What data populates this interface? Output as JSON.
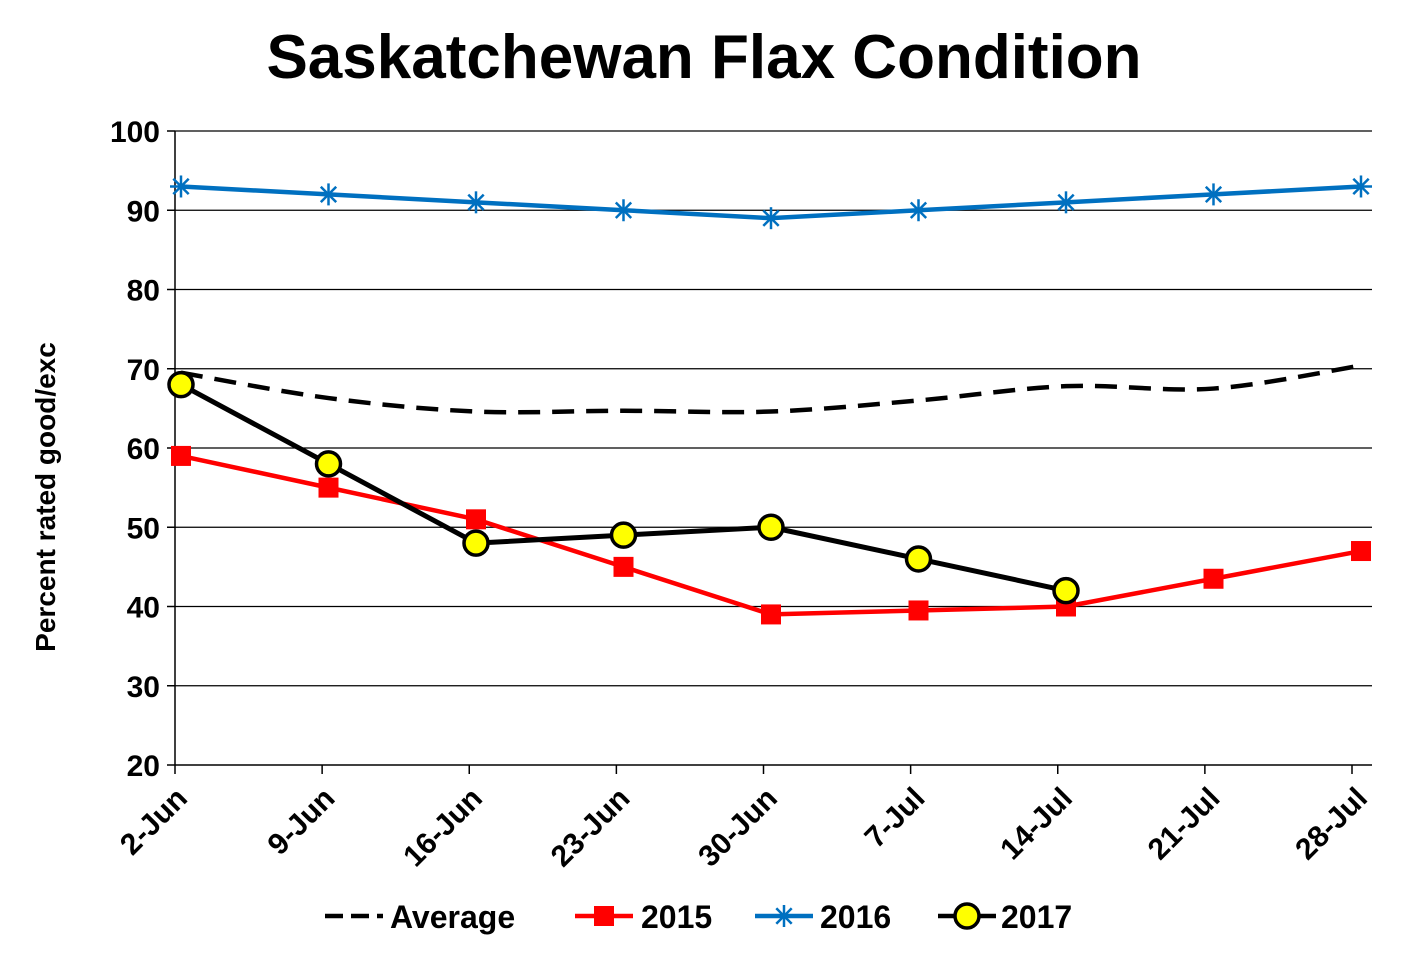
{
  "chart_data": {
    "type": "line",
    "title": "Saskatchewan Flax Condition",
    "xlabel": "",
    "ylabel": "Percent rated good/exc",
    "categories": [
      "2-Jun",
      "9-Jun",
      "16-Jun",
      "23-Jun",
      "30-Jun",
      "7-Jul",
      "14-Jul",
      "21-Jul",
      "28-Jul"
    ],
    "y_ticks": [
      "20",
      "30",
      "40",
      "50",
      "60",
      "70",
      "80",
      "90",
      "100"
    ],
    "ylim": [
      20,
      100
    ],
    "grid": true,
    "legend_position": "bottom",
    "series": [
      {
        "name": "Average",
        "color": "#000000",
        "style": "dashed-smooth",
        "marker": "none",
        "values": [
          69.5,
          66.3,
          64.6,
          64.7,
          64.6,
          66.0,
          67.8,
          67.5,
          70.4
        ]
      },
      {
        "name": "2015",
        "color": "#ff0000",
        "style": "solid",
        "marker": "square",
        "values": [
          59,
          55,
          51,
          45,
          39,
          39.5,
          40,
          43.5,
          47
        ]
      },
      {
        "name": "2016",
        "color": "#0070c0",
        "style": "solid",
        "marker": "asterisk",
        "values": [
          93,
          92,
          91,
          90,
          89,
          90,
          91,
          92,
          93
        ]
      },
      {
        "name": "2017",
        "color": "#000000",
        "style": "solid",
        "marker": "circle",
        "marker_fill": "#ffff00",
        "values": [
          68,
          58,
          48,
          49,
          50,
          46,
          42,
          null,
          null
        ]
      }
    ]
  }
}
